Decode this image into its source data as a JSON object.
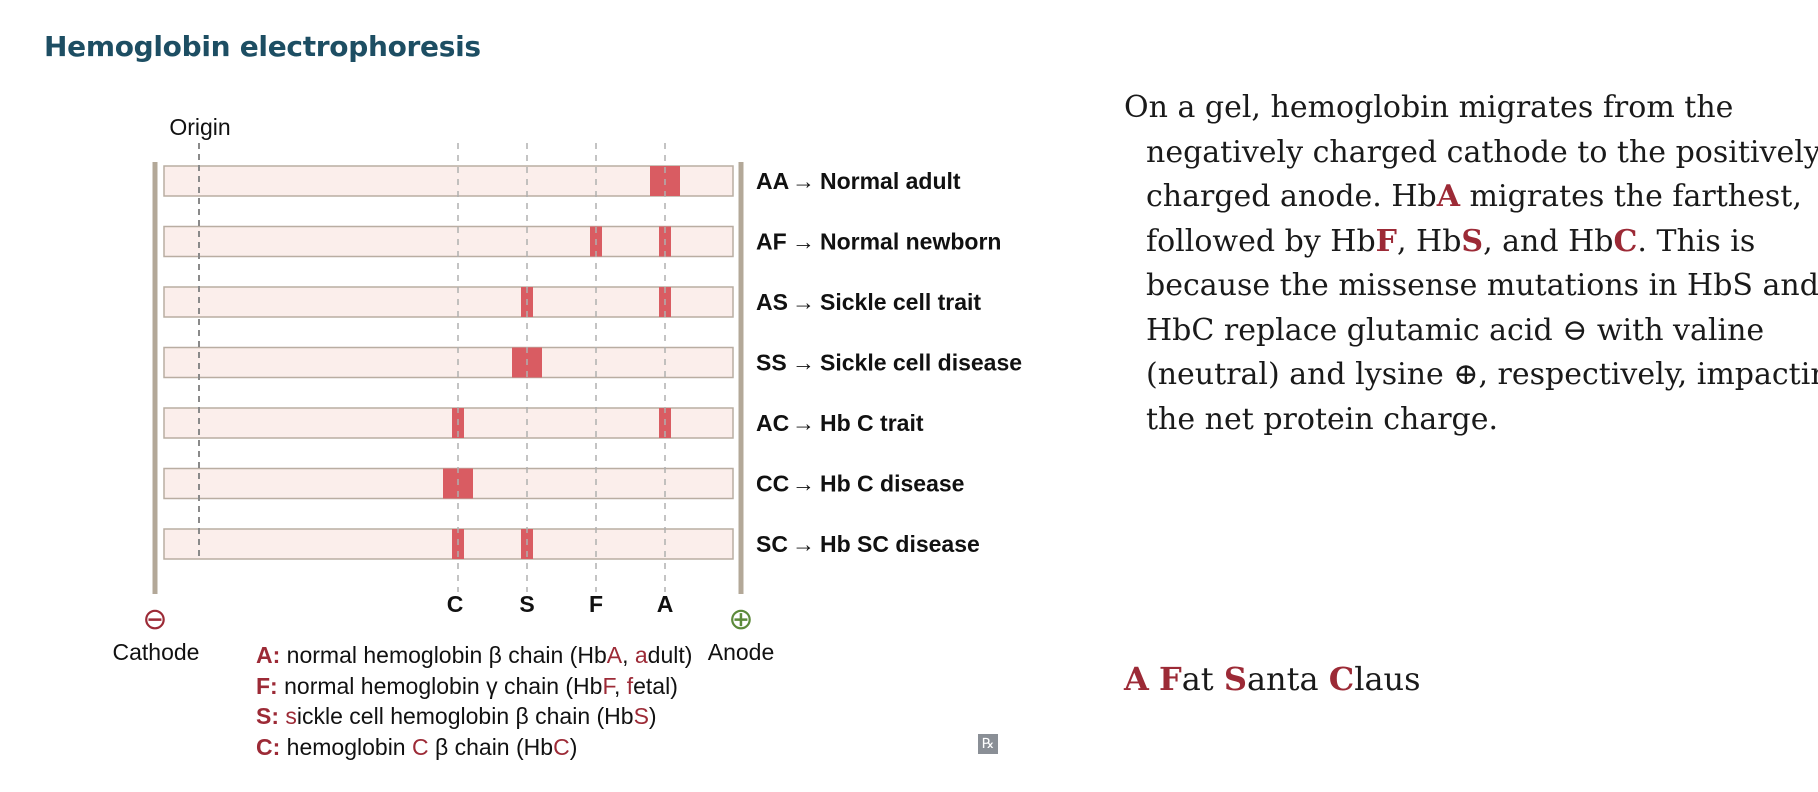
{
  "title": "Hemoglobin electrophoresis",
  "gel": {
    "origin_label": "Origin",
    "cathode_label": "Cathode",
    "anode_label": "Anode",
    "cathode_symbol": "⊖",
    "anode_symbol": "⊕",
    "arrow": "→",
    "lanes": [
      {
        "genotype": "AA",
        "description": "Normal adult",
        "bands": [
          {
            "type": "A",
            "strength": "major"
          }
        ]
      },
      {
        "genotype": "AF",
        "description": "Normal newborn",
        "bands": [
          {
            "type": "F",
            "strength": "minor"
          },
          {
            "type": "A",
            "strength": "minor"
          }
        ]
      },
      {
        "genotype": "AS",
        "description": "Sickle cell trait",
        "bands": [
          {
            "type": "S",
            "strength": "minor"
          },
          {
            "type": "A",
            "strength": "minor"
          }
        ]
      },
      {
        "genotype": "SS",
        "description": "Sickle cell disease",
        "bands": [
          {
            "type": "S",
            "strength": "major"
          }
        ]
      },
      {
        "genotype": "AC",
        "description": "Hb C trait",
        "bands": [
          {
            "type": "C",
            "strength": "minor"
          },
          {
            "type": "A",
            "strength": "minor"
          }
        ]
      },
      {
        "genotype": "CC",
        "description": "Hb C disease",
        "bands": [
          {
            "type": "C",
            "strength": "major"
          }
        ]
      },
      {
        "genotype": "SC",
        "description": "Hb SC disease",
        "bands": [
          {
            "type": "C",
            "strength": "minor"
          },
          {
            "type": "S",
            "strength": "minor"
          }
        ]
      }
    ],
    "columns": [
      "C",
      "S",
      "F",
      "A"
    ]
  },
  "legend": [
    {
      "key": "A:",
      "pre": "normal hemoglobin β chain (Hb",
      "hl": "A",
      "post": ", ",
      "hl2": "a",
      "post2": "dult)"
    },
    {
      "key": "F:",
      "pre": "normal hemoglobin γ chain (Hb",
      "hl": "F",
      "post": ", ",
      "hl2": "f",
      "post2": "etal)"
    },
    {
      "key": "S:",
      "pre": "",
      "hl": "s",
      "post": "ickle cell hemoglobin β chain (Hb",
      "hl2": "S",
      "post2": ")"
    },
    {
      "key": "C:",
      "pre": "hemoglobin ",
      "hl": "C",
      "post": " β chain (Hb",
      "hl2": "C",
      "post2": ")"
    }
  ],
  "explanation": {
    "l1": "On a gel, hemoglobin migrates from the",
    "l2": "negatively charged cathode to the positively",
    "l3a": "charged anode. Hb",
    "l3b": "A",
    "l3c": " migrates the farthest,",
    "l4a": "followed by Hb",
    "l4b": "F",
    "l4c": ", Hb",
    "l4d": "S",
    "l4e": ", and Hb",
    "l4f": "C",
    "l4g": ". This is",
    "l5": "because the missense mutations in HbS and",
    "l6": "HbC replace glutamic acid ⊖ with valine",
    "l7": "(neutral) and lysine ⊕, respectively, impacting",
    "l8": "the net protein charge."
  },
  "mnemonic": {
    "w1a": "A",
    "w2a": "F",
    "w2b": "at ",
    "w3a": "S",
    "w3b": "anta ",
    "w4a": "C",
    "w4b": "laus"
  },
  "rx_badge": "℞",
  "colors": {
    "title": "#1d4e63",
    "band": "#d95c62",
    "lane": "#fbeeeb",
    "lane_border": "#b9ada2",
    "electrode": "#b3a898",
    "accent_red": "#9c2a36",
    "anode_green": "#5c8a3a"
  }
}
